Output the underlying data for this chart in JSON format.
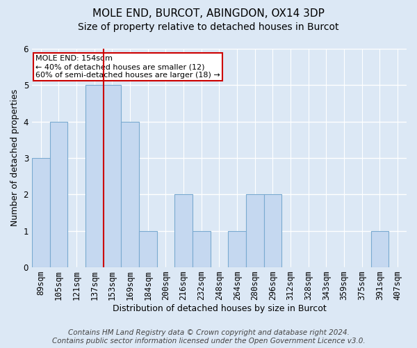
{
  "title": "MOLE END, BURCOT, ABINGDON, OX14 3DP",
  "subtitle": "Size of property relative to detached houses in Burcot",
  "xlabel": "Distribution of detached houses by size in Burcot",
  "ylabel": "Number of detached properties",
  "categories": [
    "89sqm",
    "105sqm",
    "121sqm",
    "137sqm",
    "153sqm",
    "169sqm",
    "184sqm",
    "200sqm",
    "216sqm",
    "232sqm",
    "248sqm",
    "264sqm",
    "280sqm",
    "296sqm",
    "312sqm",
    "328sqm",
    "343sqm",
    "359sqm",
    "375sqm",
    "391sqm",
    "407sqm"
  ],
  "values": [
    3,
    4,
    0,
    5,
    5,
    4,
    1,
    0,
    2,
    1,
    0,
    1,
    2,
    2,
    0,
    0,
    0,
    0,
    0,
    1,
    0
  ],
  "bar_color": "#c5d8f0",
  "bar_edge_color": "#7aaad0",
  "highlight_between": 3,
  "highlight_line_color": "#cc0000",
  "annotation_text": "MOLE END: 154sqm\n← 40% of detached houses are smaller (12)\n60% of semi-detached houses are larger (18) →",
  "annotation_box_color": "#ffffff",
  "annotation_box_edge_color": "#cc0000",
  "ylim": [
    0,
    6
  ],
  "yticks": [
    0,
    1,
    2,
    3,
    4,
    5,
    6
  ],
  "footer_line1": "Contains HM Land Registry data © Crown copyright and database right 2024.",
  "footer_line2": "Contains public sector information licensed under the Open Government Licence v3.0.",
  "background_color": "#dce8f5",
  "plot_bg_color": "#dce8f5",
  "grid_color": "#ffffff",
  "title_fontsize": 11,
  "subtitle_fontsize": 10,
  "axis_label_fontsize": 9,
  "tick_fontsize": 8.5,
  "footer_fontsize": 7.5
}
